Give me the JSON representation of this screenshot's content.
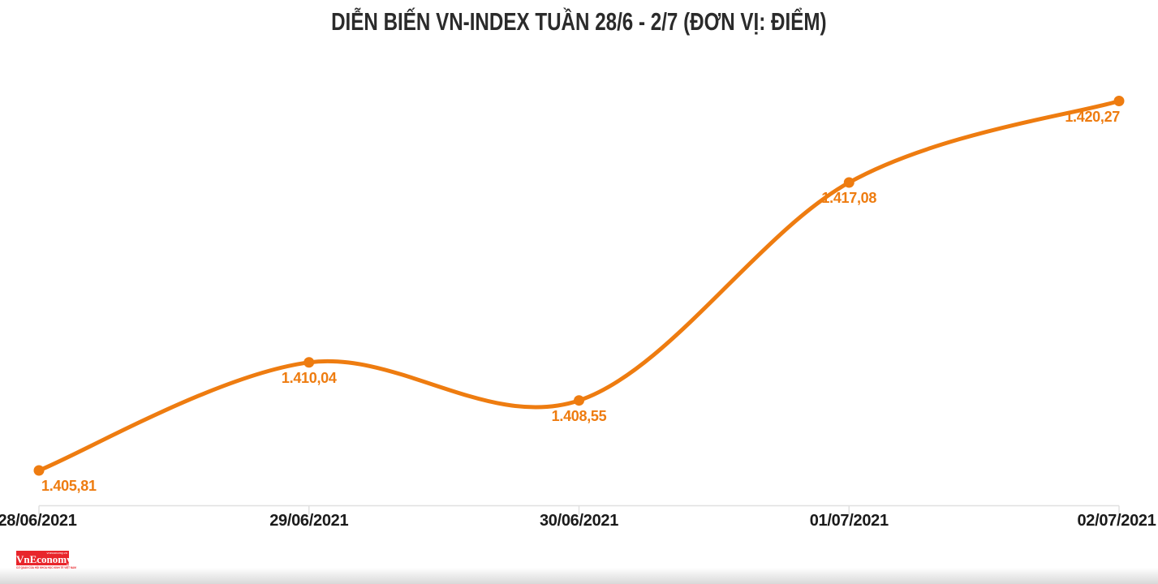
{
  "chart_data": {
    "type": "line",
    "title": "DIỄN BIẾN VN-INDEX TUẦN 28/6 - 2/7 (ĐƠN VỊ: ĐIỂM)",
    "series_name": "VN-Index",
    "categories": [
      "28/06/2021",
      "29/06/2021",
      "30/06/2021",
      "01/07/2021",
      "02/07/2021"
    ],
    "values": [
      1405.81,
      1410.04,
      1408.55,
      1417.08,
      1420.27
    ],
    "value_labels": [
      "1.405,81",
      "1.410,04",
      "1.408,55",
      "1.417,08",
      "1.420,27"
    ],
    "unit": "ĐIỂM",
    "y_axis_visible": false,
    "grid": false,
    "legend": "none",
    "data_labels_visible": true,
    "marker": "circle",
    "line_smoothing": "spline"
  },
  "colors": {
    "accent": "#ee7c10",
    "title_text": "#2b2b2b",
    "axis_text": "#1b1b1b",
    "axis_line": "#e0e0e0",
    "logo_red": "#e8252b"
  },
  "branding": {
    "logo_text": "VnEconomy",
    "tagline_top": "vneconomy.vn",
    "tagline_bottom": "CƠ QUAN CỦA HỘI KHOA HỌC KINH TẾ VIỆT NAM"
  }
}
